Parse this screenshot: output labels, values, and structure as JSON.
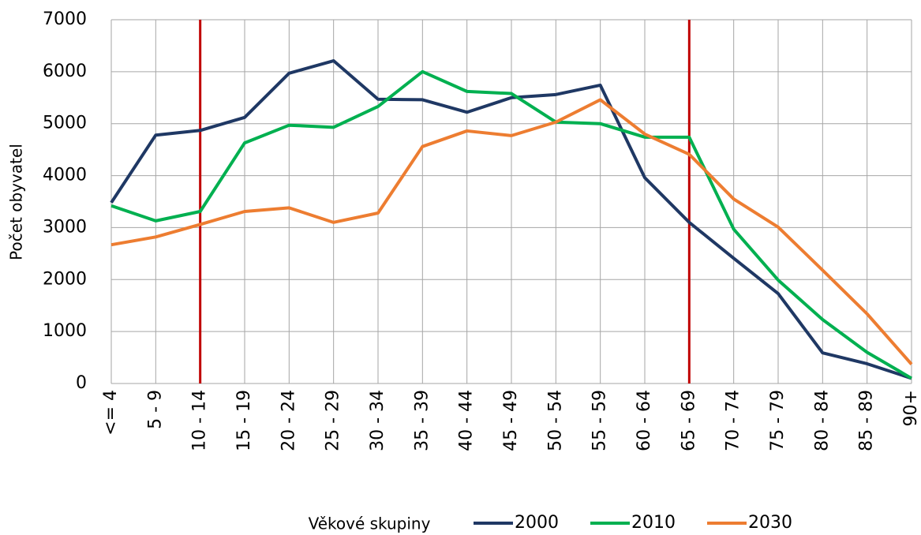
{
  "chart_data": {
    "type": "line",
    "x_label": "Věkové skupiny",
    "y_label": "Počet obyvatel",
    "categories": [
      "<= 4",
      "5 - 9",
      "10 - 14",
      "15 - 19",
      "20 - 24",
      "25 - 29",
      "30 - 34",
      "35 - 39",
      "40 - 44",
      "45 - 49",
      "50 - 54",
      "55 - 59",
      "60 - 64",
      "65 - 69",
      "70 - 74",
      "75 - 79",
      "80 - 84",
      "85 - 89",
      "90+"
    ],
    "series": [
      {
        "name": "2000",
        "color": "#1f3864",
        "values": [
          3480,
          4780,
          4870,
          5120,
          5970,
          6210,
          5470,
          5460,
          5220,
          5500,
          5560,
          5740,
          3960,
          3100,
          2410,
          1730,
          590,
          380,
          100
        ]
      },
      {
        "name": "2010",
        "color": "#00b050",
        "values": [
          3420,
          3130,
          3310,
          4630,
          4970,
          4930,
          5330,
          6000,
          5620,
          5580,
          5030,
          5000,
          4740,
          4740,
          2970,
          1990,
          1230,
          600,
          100
        ]
      },
      {
        "name": "2030",
        "color": "#ed7d31",
        "values": [
          2670,
          2820,
          3060,
          3310,
          3380,
          3100,
          3280,
          4560,
          4860,
          4770,
          5030,
          5460,
          4800,
          4410,
          3550,
          3010,
          2180,
          1340,
          370
        ]
      }
    ],
    "ylim": [
      0,
      7000
    ],
    "yticks": [
      0,
      1000,
      2000,
      3000,
      4000,
      5000,
      6000,
      7000
    ],
    "grid": true,
    "legend": "bottom",
    "vertical_lines": {
      "color": "#c00000",
      "categories": [
        "10 - 14",
        "65 - 69"
      ]
    }
  }
}
